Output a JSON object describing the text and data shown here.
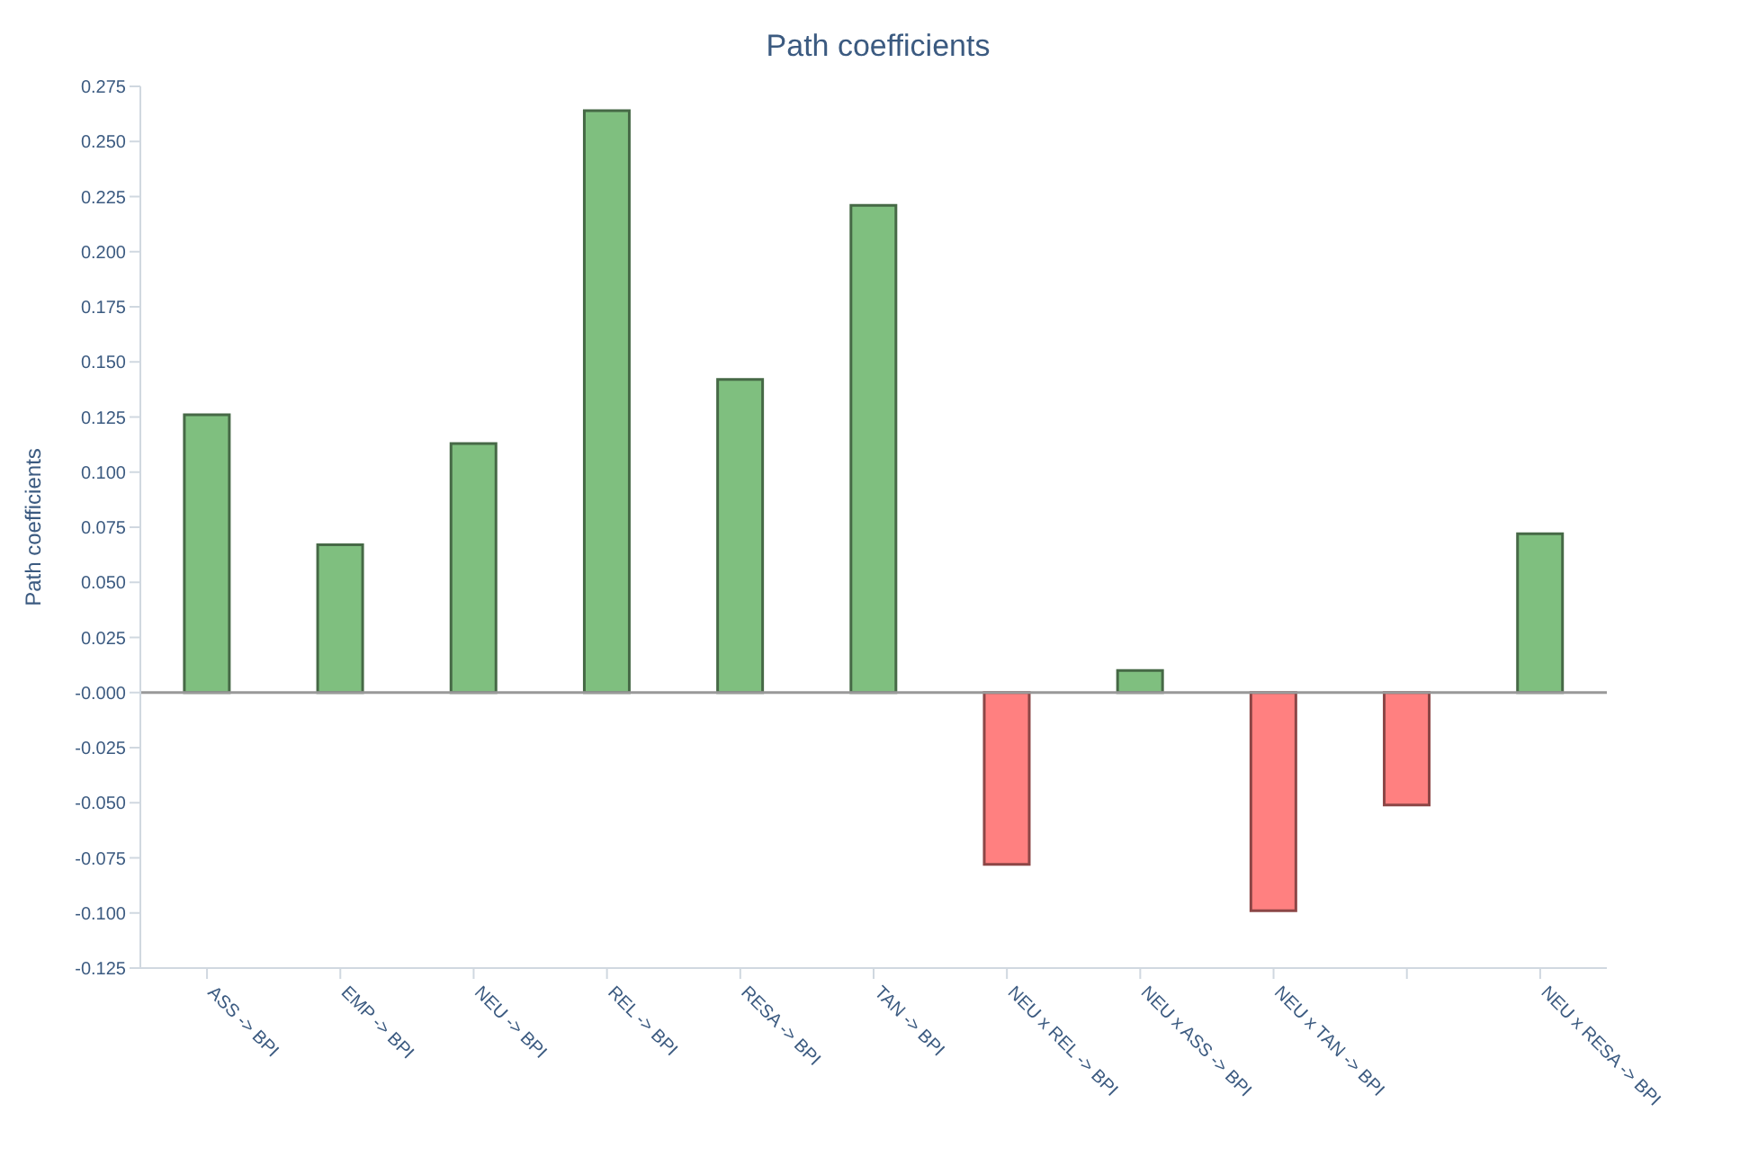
{
  "chart_data": {
    "type": "bar",
    "title": "Path coefficients",
    "ylabel": "Path coefficients",
    "categories": [
      "ASS -> BPI",
      "EMP -> BPI",
      "NEU -> BPI",
      "REL -> BPI",
      "RESA -> BPI",
      "TAN -> BPI",
      "NEU x REL -> BPI",
      "NEU x ASS -> BPI",
      "NEU x TAN -> BPI",
      null,
      "NEU x RESA -> BPI"
    ],
    "values": [
      0.126,
      0.067,
      0.113,
      0.264,
      0.142,
      0.221,
      -0.078,
      0.01,
      -0.099,
      -0.051,
      0.072
    ],
    "colors": [
      "#7fbf7f",
      "#7fbf7f",
      "#7fbf7f",
      "#7fbf7f",
      "#7fbf7f",
      "#7fbf7f",
      "#ff8080",
      "#7fbf7f",
      "#ff8080",
      "#ff8080",
      "#7fbf7f"
    ],
    "ylim": [
      -0.125,
      0.275
    ],
    "yticks": [
      {
        "value": -0.125,
        "label": "-0.125"
      },
      {
        "value": -0.1,
        "label": "-0.100"
      },
      {
        "value": -0.075,
        "label": "-0.075"
      },
      {
        "value": -0.05,
        "label": "-0.050"
      },
      {
        "value": -0.025,
        "label": "-0.025"
      },
      {
        "value": 0,
        "label": "-0.000"
      },
      {
        "value": 0.025,
        "label": "0.025"
      },
      {
        "value": 0.05,
        "label": "0.050"
      },
      {
        "value": 0.075,
        "label": "0.075"
      },
      {
        "value": 0.1,
        "label": "0.100"
      },
      {
        "value": 0.125,
        "label": "0.125"
      },
      {
        "value": 0.15,
        "label": "0.150"
      },
      {
        "value": 0.175,
        "label": "0.175"
      },
      {
        "value": 0.2,
        "label": "0.200"
      },
      {
        "value": 0.225,
        "label": "0.225"
      },
      {
        "value": 0.25,
        "label": "0.250"
      },
      {
        "value": 0.275,
        "label": "0.275"
      }
    ],
    "ref_lines": [
      {
        "axis": "y",
        "value": 0,
        "color": "#999999"
      }
    ],
    "grid": false,
    "legend": false
  }
}
